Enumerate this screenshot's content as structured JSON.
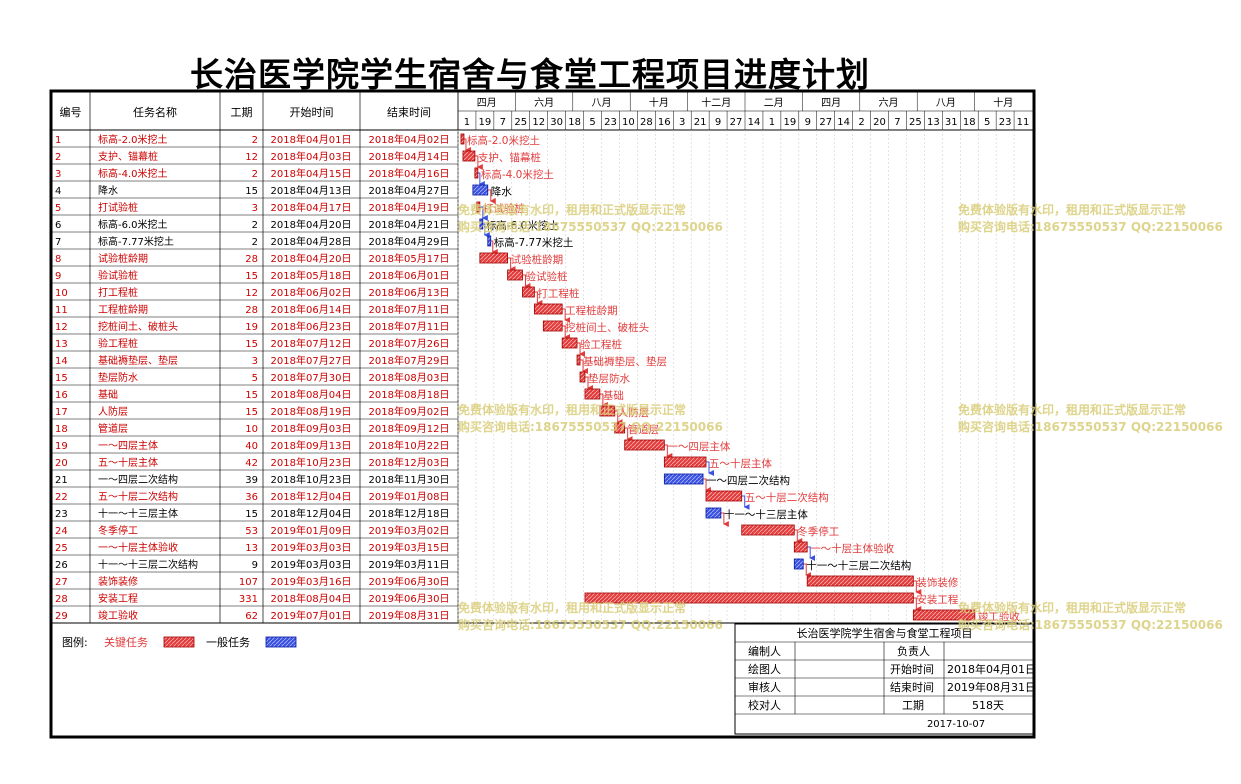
{
  "title": "长治医学院学生宿舍与食堂工程项目进度计划",
  "table_headers": {
    "id": "编号",
    "name": "任务名称",
    "duration": "工期",
    "start": "开始时间",
    "end": "结束时间"
  },
  "colors": {
    "critical": "#e23b3b",
    "normal": "#3b52e0",
    "grid_red": "#cc0000",
    "watermark": "#d9cd78"
  },
  "timeline": {
    "months": [
      "四月",
      "六月",
      "八月",
      "十月",
      "十二月",
      "二月",
      "四月",
      "六月",
      "八月",
      "十月"
    ],
    "days": [
      "1",
      "19",
      "7",
      "25",
      "12",
      "30",
      "18",
      "5",
      "23",
      "10",
      "28",
      "16",
      "3",
      "21",
      "9",
      "27",
      "14",
      "1",
      "19",
      "9",
      "27",
      "14",
      "2",
      "20",
      "7",
      "25",
      "13",
      "31",
      "18",
      "5",
      "23",
      "11"
    ]
  },
  "legend": {
    "label": "图例:",
    "critical": "关键任务",
    "normal": "一般任务"
  },
  "info_box": {
    "project": "长治医学院学生宿舍与食堂工程项目",
    "compiler": "编制人",
    "owner": "负责人",
    "drawer": "绘图人",
    "reviewer": "审核人",
    "checker": "校对人",
    "start_label": "开始时间",
    "start_value": "2018年04月01日",
    "end_label": "结束时间",
    "end_value": "2019年08月31日",
    "duration_label": "工期",
    "duration_value": "518天",
    "date": "2017-10-07"
  },
  "watermark": {
    "line1": "免费体验版有水印，租用和正式版显示正常",
    "line2": "购买咨询电话:18675550537 QQ:22150066"
  },
  "chart_data": {
    "type": "gantt",
    "title": "长治医学院学生宿舍与食堂工程项目进度计划",
    "tasks": [
      {
        "id": "1",
        "name": "标高-2.0米挖土",
        "duration": 2,
        "start": "2018年04月01日",
        "end": "2018年04月02日",
        "critical": true,
        "s": "2018-04-01",
        "e": "2018-04-02"
      },
      {
        "id": "2",
        "name": "支护、锚幕桩",
        "duration": 12,
        "start": "2018年04月03日",
        "end": "2018年04月14日",
        "critical": true,
        "s": "2018-04-03",
        "e": "2018-04-14"
      },
      {
        "id": "3",
        "name": "标高-4.0米挖土",
        "duration": 2,
        "start": "2018年04月15日",
        "end": "2018年04月16日",
        "critical": true,
        "s": "2018-04-15",
        "e": "2018-04-16"
      },
      {
        "id": "4",
        "name": "降水",
        "duration": 15,
        "start": "2018年04月13日",
        "end": "2018年04月27日",
        "critical": false,
        "s": "2018-04-13",
        "e": "2018-04-27"
      },
      {
        "id": "5",
        "name": "打试验桩",
        "duration": 3,
        "start": "2018年04月17日",
        "end": "2018年04月19日",
        "critical": true,
        "s": "2018-04-17",
        "e": "2018-04-19"
      },
      {
        "id": "6",
        "name": "标高-6.0米挖土",
        "duration": 2,
        "start": "2018年04月20日",
        "end": "2018年04月21日",
        "critical": false,
        "s": "2018-04-20",
        "e": "2018-04-21"
      },
      {
        "id": "7",
        "name": "标高-7.77米挖土",
        "duration": 2,
        "start": "2018年04月28日",
        "end": "2018年04月29日",
        "critical": false,
        "s": "2018-04-28",
        "e": "2018-04-29"
      },
      {
        "id": "8",
        "name": "试验桩龄期",
        "duration": 28,
        "start": "2018年04月20日",
        "end": "2018年05月17日",
        "critical": true,
        "s": "2018-04-20",
        "e": "2018-05-17"
      },
      {
        "id": "9",
        "name": "验试验桩",
        "duration": 15,
        "start": "2018年05月18日",
        "end": "2018年06月01日",
        "critical": true,
        "s": "2018-05-18",
        "e": "2018-06-01"
      },
      {
        "id": "10",
        "name": "打工程桩",
        "duration": 12,
        "start": "2018年06月02日",
        "end": "2018年06月13日",
        "critical": true,
        "s": "2018-06-02",
        "e": "2018-06-13"
      },
      {
        "id": "11",
        "name": "工程桩龄期",
        "duration": 28,
        "start": "2018年06月14日",
        "end": "2018年07月11日",
        "critical": true,
        "s": "2018-06-14",
        "e": "2018-07-11"
      },
      {
        "id": "12",
        "name": "挖桩间土、破桩头",
        "duration": 19,
        "start": "2018年06月23日",
        "end": "2018年07月11日",
        "critical": true,
        "s": "2018-06-23",
        "e": "2018-07-11"
      },
      {
        "id": "13",
        "name": "验工程桩",
        "duration": 15,
        "start": "2018年07月12日",
        "end": "2018年07月26日",
        "critical": true,
        "s": "2018-07-12",
        "e": "2018-07-26"
      },
      {
        "id": "14",
        "name": "基础褥垫层、垫层",
        "duration": 3,
        "start": "2018年07月27日",
        "end": "2018年07月29日",
        "critical": true,
        "s": "2018-07-27",
        "e": "2018-07-29"
      },
      {
        "id": "15",
        "name": "垫层防水",
        "duration": 5,
        "start": "2018年07月30日",
        "end": "2018年08月03日",
        "critical": true,
        "s": "2018-07-30",
        "e": "2018-08-03"
      },
      {
        "id": "16",
        "name": "基础",
        "duration": 15,
        "start": "2018年08月04日",
        "end": "2018年08月18日",
        "critical": true,
        "s": "2018-08-04",
        "e": "2018-08-18"
      },
      {
        "id": "17",
        "name": "人防层",
        "duration": 15,
        "start": "2018年08月19日",
        "end": "2018年09月02日",
        "critical": true,
        "s": "2018-08-19",
        "e": "2018-09-02"
      },
      {
        "id": "18",
        "name": "管道层",
        "duration": 10,
        "start": "2018年09月03日",
        "end": "2018年09月12日",
        "critical": true,
        "s": "2018-09-03",
        "e": "2018-09-12"
      },
      {
        "id": "19",
        "name": "一～四层主体",
        "duration": 40,
        "start": "2018年09月13日",
        "end": "2018年10月22日",
        "critical": true,
        "s": "2018-09-13",
        "e": "2018-10-22"
      },
      {
        "id": "20",
        "name": "五～十层主体",
        "duration": 42,
        "start": "2018年10月23日",
        "end": "2018年12月03日",
        "critical": true,
        "s": "2018-10-23",
        "e": "2018-12-03"
      },
      {
        "id": "21",
        "name": "一～四层二次结构",
        "duration": 39,
        "start": "2018年10月23日",
        "end": "2018年11月30日",
        "critical": false,
        "s": "2018-10-23",
        "e": "2018-11-30"
      },
      {
        "id": "22",
        "name": "五～十层二次结构",
        "duration": 36,
        "start": "2018年12月04日",
        "end": "2019年01月08日",
        "critical": true,
        "s": "2018-12-04",
        "e": "2019-01-08"
      },
      {
        "id": "23",
        "name": "十一～十三层主体",
        "duration": 15,
        "start": "2018年12月04日",
        "end": "2018年12月18日",
        "critical": false,
        "s": "2018-12-04",
        "e": "2018-12-18"
      },
      {
        "id": "24",
        "name": "冬季停工",
        "duration": 53,
        "start": "2019年01月09日",
        "end": "2019年03月02日",
        "critical": true,
        "s": "2019-01-09",
        "e": "2019-03-02"
      },
      {
        "id": "25",
        "name": "一～十层主体验收",
        "duration": 13,
        "start": "2019年03月03日",
        "end": "2019年03月15日",
        "critical": true,
        "s": "2019-03-03",
        "e": "2019-03-15"
      },
      {
        "id": "26",
        "name": "十一～十三层二次结构",
        "duration": 9,
        "start": "2019年03月03日",
        "end": "2019年03月11日",
        "critical": false,
        "s": "2019-03-03",
        "e": "2019-03-11"
      },
      {
        "id": "27",
        "name": "装饰装修",
        "duration": 107,
        "start": "2019年03月16日",
        "end": "2019年06月30日",
        "critical": true,
        "s": "2019-03-16",
        "e": "2019-06-30"
      },
      {
        "id": "28",
        "name": "安装工程",
        "duration": 331,
        "start": "2018年08月04日",
        "end": "2019年06月30日",
        "critical": true,
        "s": "2018-08-04",
        "e": "2019-06-30"
      },
      {
        "id": "29",
        "name": "竣工验收",
        "duration": 62,
        "start": "2019年07月01日",
        "end": "2019年08月31日",
        "critical": true,
        "s": "2019-07-01",
        "e": "2019-08-31"
      }
    ]
  }
}
